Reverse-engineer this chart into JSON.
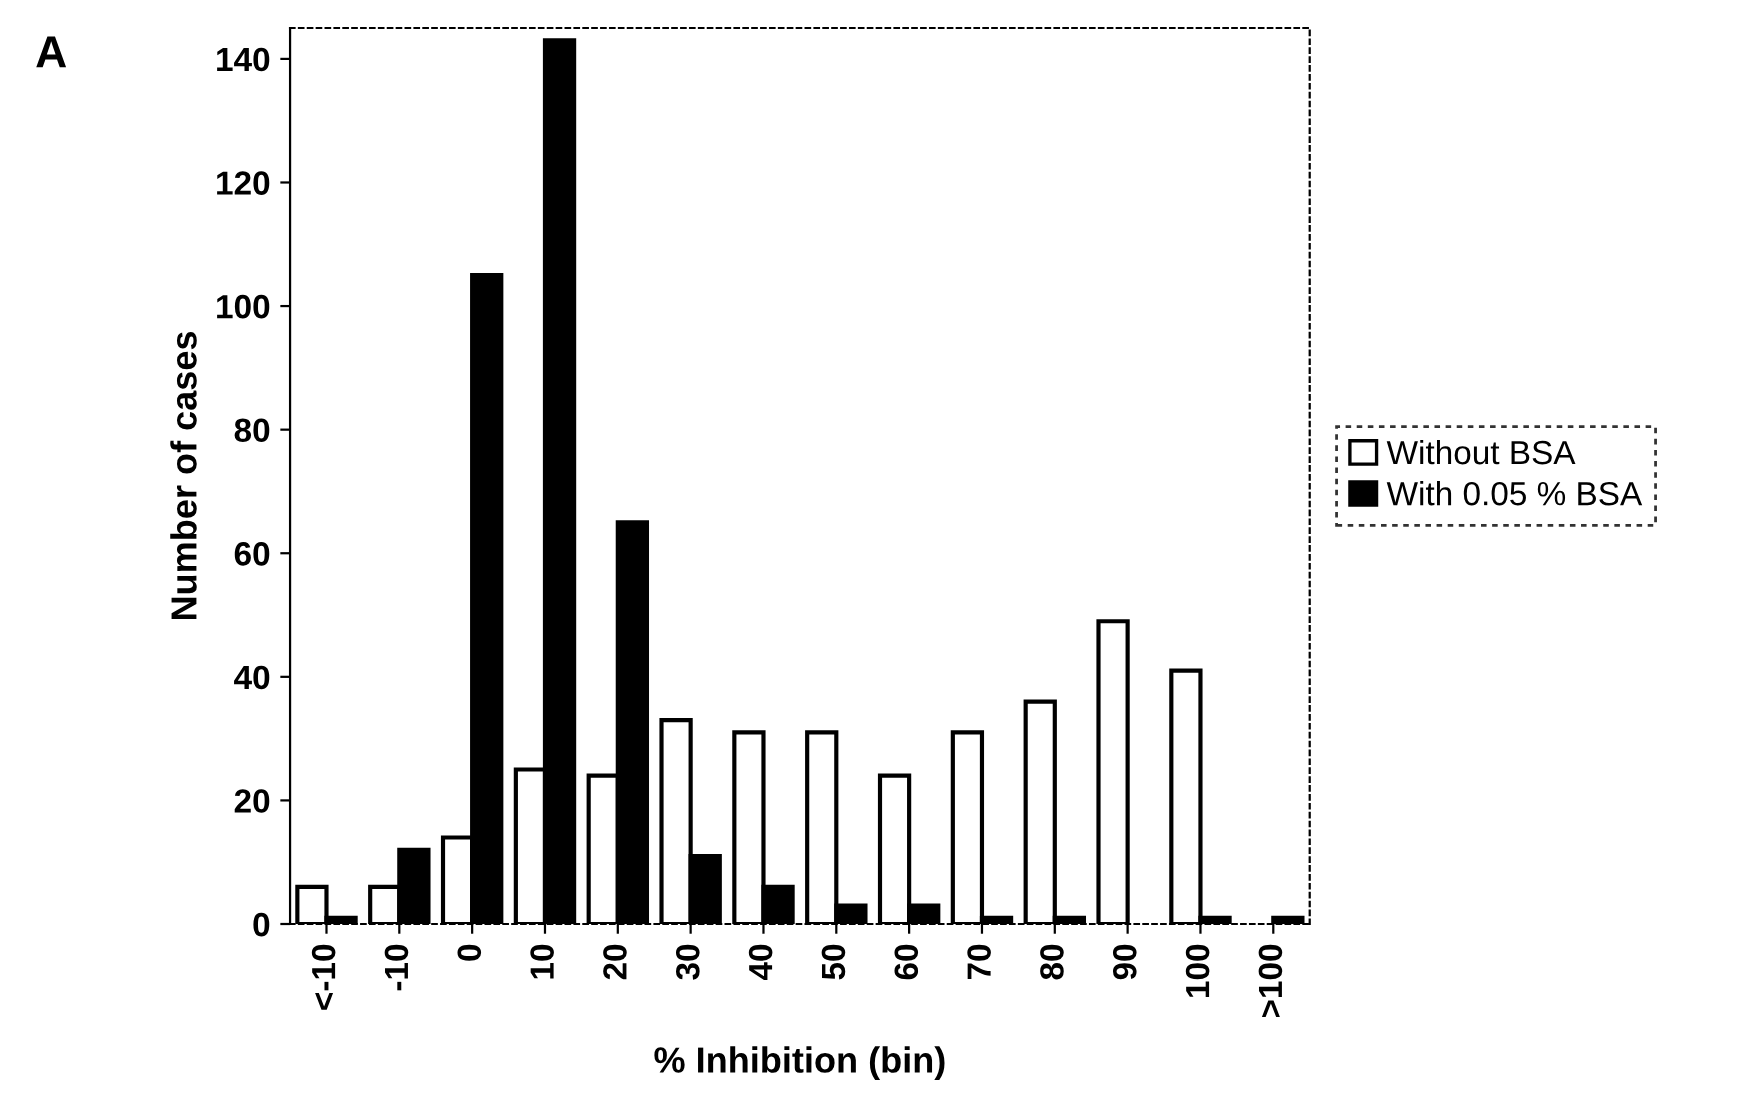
{
  "chart_data": {
    "type": "bar",
    "xlabel": "% Inhibition (bin)",
    "ylabel": "Number of cases",
    "annotations": [
      "A"
    ],
    "categories": [
      "<-10",
      "-10",
      "0",
      "10",
      "20",
      "30",
      "40",
      "50",
      "60",
      "70",
      "80",
      "90",
      "100",
      ">100"
    ],
    "series": [
      {
        "name": "Without BSA",
        "color": "#ffffff",
        "values": [
          6,
          6,
          14,
          25,
          24,
          33,
          31,
          31,
          24,
          31,
          36,
          49,
          41,
          null
        ]
      },
      {
        "name": "With 0.05 % BSA",
        "color": "#000000",
        "values": [
          1,
          12,
          105,
          143,
          65,
          11,
          6,
          3,
          3,
          1,
          1,
          null,
          1,
          1
        ]
      }
    ],
    "ylim": [
      0,
      145
    ],
    "yticks": [
      0,
      20,
      40,
      60,
      80,
      100,
      120,
      140
    ],
    "grid": false,
    "legend": "right"
  }
}
